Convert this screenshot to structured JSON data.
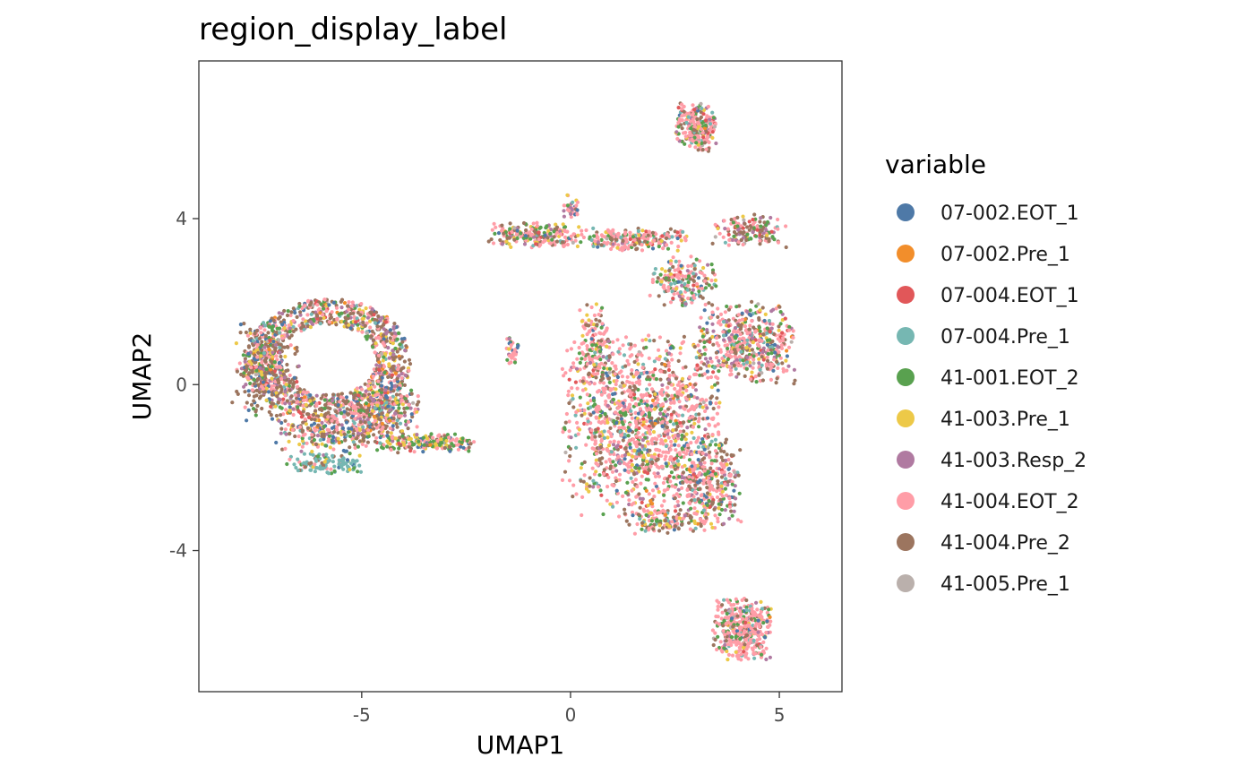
{
  "chart_data": {
    "type": "scatter",
    "title": "region_display_label",
    "xlabel": "UMAP1",
    "ylabel": "UMAP2",
    "xlim": [
      -8.9,
      6.5
    ],
    "ylim": [
      -7.4,
      7.8
    ],
    "x_ticks": [
      {
        "value": -5,
        "label": "-5"
      },
      {
        "value": 0,
        "label": "0"
      },
      {
        "value": 5,
        "label": "5"
      }
    ],
    "y_ticks": [
      {
        "value": -4,
        "label": "-4"
      },
      {
        "value": 0,
        "label": "0"
      },
      {
        "value": 4,
        "label": "4"
      }
    ],
    "grid": false,
    "legend": {
      "title": "variable",
      "position": "right",
      "entries": [
        {
          "name": "07-002.EOT_1",
          "color": "#4E79A7"
        },
        {
          "name": "07-002.Pre_1",
          "color": "#F28E2B"
        },
        {
          "name": "07-004.EOT_1",
          "color": "#E15759"
        },
        {
          "name": "07-004.Pre_1",
          "color": "#76B7B2"
        },
        {
          "name": "41-001.EOT_2",
          "color": "#59A14F"
        },
        {
          "name": "41-003.Pre_1",
          "color": "#EDC948"
        },
        {
          "name": "41-003.Resp_2",
          "color": "#B07AA1"
        },
        {
          "name": "41-004.EOT_2",
          "color": "#FF9DA7"
        },
        {
          "name": "41-004.Pre_2",
          "color": "#9C755F"
        },
        {
          "name": "41-005.Pre_1",
          "color": "#BAB0AC"
        }
      ]
    },
    "clusters": [
      {
        "cx": -5.8,
        "cy": 0.6,
        "rx": 1.9,
        "ry": 1.4,
        "n": 1100,
        "ring": true,
        "w": [
          6,
          2,
          3,
          4,
          7,
          8,
          10,
          20,
          30,
          1
        ]
      },
      {
        "cx": -7.3,
        "cy": 0.3,
        "rx": 0.8,
        "ry": 1.2,
        "n": 260,
        "w": [
          10,
          2,
          2,
          3,
          6,
          10,
          12,
          15,
          40,
          1
        ]
      },
      {
        "cx": -5.6,
        "cy": -1.1,
        "rx": 1.5,
        "ry": 0.6,
        "n": 320,
        "w": [
          8,
          2,
          3,
          4,
          8,
          10,
          6,
          25,
          30,
          1
        ]
      },
      {
        "cx": -5.9,
        "cy": -1.9,
        "rx": 0.9,
        "ry": 0.25,
        "n": 120,
        "w": [
          6,
          0,
          1,
          60,
          6,
          4,
          3,
          8,
          10,
          0
        ]
      },
      {
        "cx": -4.4,
        "cy": -0.6,
        "rx": 0.8,
        "ry": 0.6,
        "n": 220,
        "w": [
          12,
          2,
          3,
          4,
          10,
          10,
          10,
          20,
          20,
          1
        ]
      },
      {
        "cx": -3.4,
        "cy": -1.4,
        "rx": 1.2,
        "ry": 0.22,
        "n": 180,
        "w": [
          10,
          1,
          2,
          3,
          25,
          12,
          3,
          20,
          8,
          1
        ]
      },
      {
        "cx": -1.4,
        "cy": 0.8,
        "rx": 0.15,
        "ry": 0.35,
        "n": 35,
        "w": [
          3,
          0,
          1,
          2,
          5,
          3,
          3,
          30,
          3,
          0
        ]
      },
      {
        "cx": -0.9,
        "cy": 3.6,
        "rx": 1.1,
        "ry": 0.3,
        "n": 200,
        "w": [
          3,
          1,
          3,
          3,
          12,
          8,
          5,
          35,
          25,
          1
        ]
      },
      {
        "cx": 1.4,
        "cy": 3.5,
        "rx": 1.4,
        "ry": 0.28,
        "n": 220,
        "w": [
          2,
          1,
          4,
          5,
          10,
          8,
          4,
          40,
          15,
          1
        ]
      },
      {
        "cx": 2.7,
        "cy": 2.5,
        "rx": 0.8,
        "ry": 0.6,
        "n": 180,
        "w": [
          3,
          1,
          4,
          14,
          10,
          6,
          4,
          35,
          15,
          1
        ]
      },
      {
        "cx": 0.0,
        "cy": 4.3,
        "rx": 0.2,
        "ry": 0.3,
        "n": 30,
        "w": [
          1,
          0,
          2,
          2,
          3,
          2,
          15,
          20,
          2,
          0
        ]
      },
      {
        "cx": 3.0,
        "cy": 6.2,
        "rx": 0.5,
        "ry": 0.6,
        "n": 240,
        "w": [
          3,
          1,
          5,
          4,
          10,
          4,
          5,
          50,
          12,
          1
        ]
      },
      {
        "cx": 4.3,
        "cy": 3.7,
        "rx": 0.9,
        "ry": 0.4,
        "n": 140,
        "w": [
          2,
          1,
          4,
          3,
          8,
          3,
          12,
          25,
          35,
          2
        ]
      },
      {
        "cx": 1.7,
        "cy": -1.0,
        "rx": 1.9,
        "ry": 2.2,
        "n": 1300,
        "w": [
          6,
          2,
          4,
          5,
          10,
          7,
          6,
          45,
          14,
          1
        ]
      },
      {
        "cx": 4.2,
        "cy": 1.0,
        "rx": 1.2,
        "ry": 1.0,
        "n": 500,
        "w": [
          6,
          1,
          4,
          4,
          8,
          6,
          10,
          40,
          20,
          1
        ]
      },
      {
        "cx": 3.3,
        "cy": -2.4,
        "rx": 0.8,
        "ry": 1.1,
        "n": 300,
        "w": [
          5,
          1,
          5,
          5,
          10,
          5,
          8,
          35,
          25,
          1
        ]
      },
      {
        "cx": 2.3,
        "cy": -3.3,
        "rx": 1.0,
        "ry": 0.3,
        "n": 130,
        "w": [
          4,
          2,
          4,
          4,
          12,
          10,
          4,
          30,
          25,
          1
        ]
      },
      {
        "cx": 0.6,
        "cy": 0.8,
        "rx": 0.4,
        "ry": 1.2,
        "n": 150,
        "w": [
          5,
          1,
          4,
          3,
          12,
          8,
          6,
          45,
          14,
          1
        ]
      },
      {
        "cx": 4.1,
        "cy": -5.9,
        "rx": 0.7,
        "ry": 0.75,
        "n": 420,
        "w": [
          4,
          1,
          3,
          4,
          10,
          5,
          3,
          60,
          8,
          1
        ]
      }
    ]
  }
}
